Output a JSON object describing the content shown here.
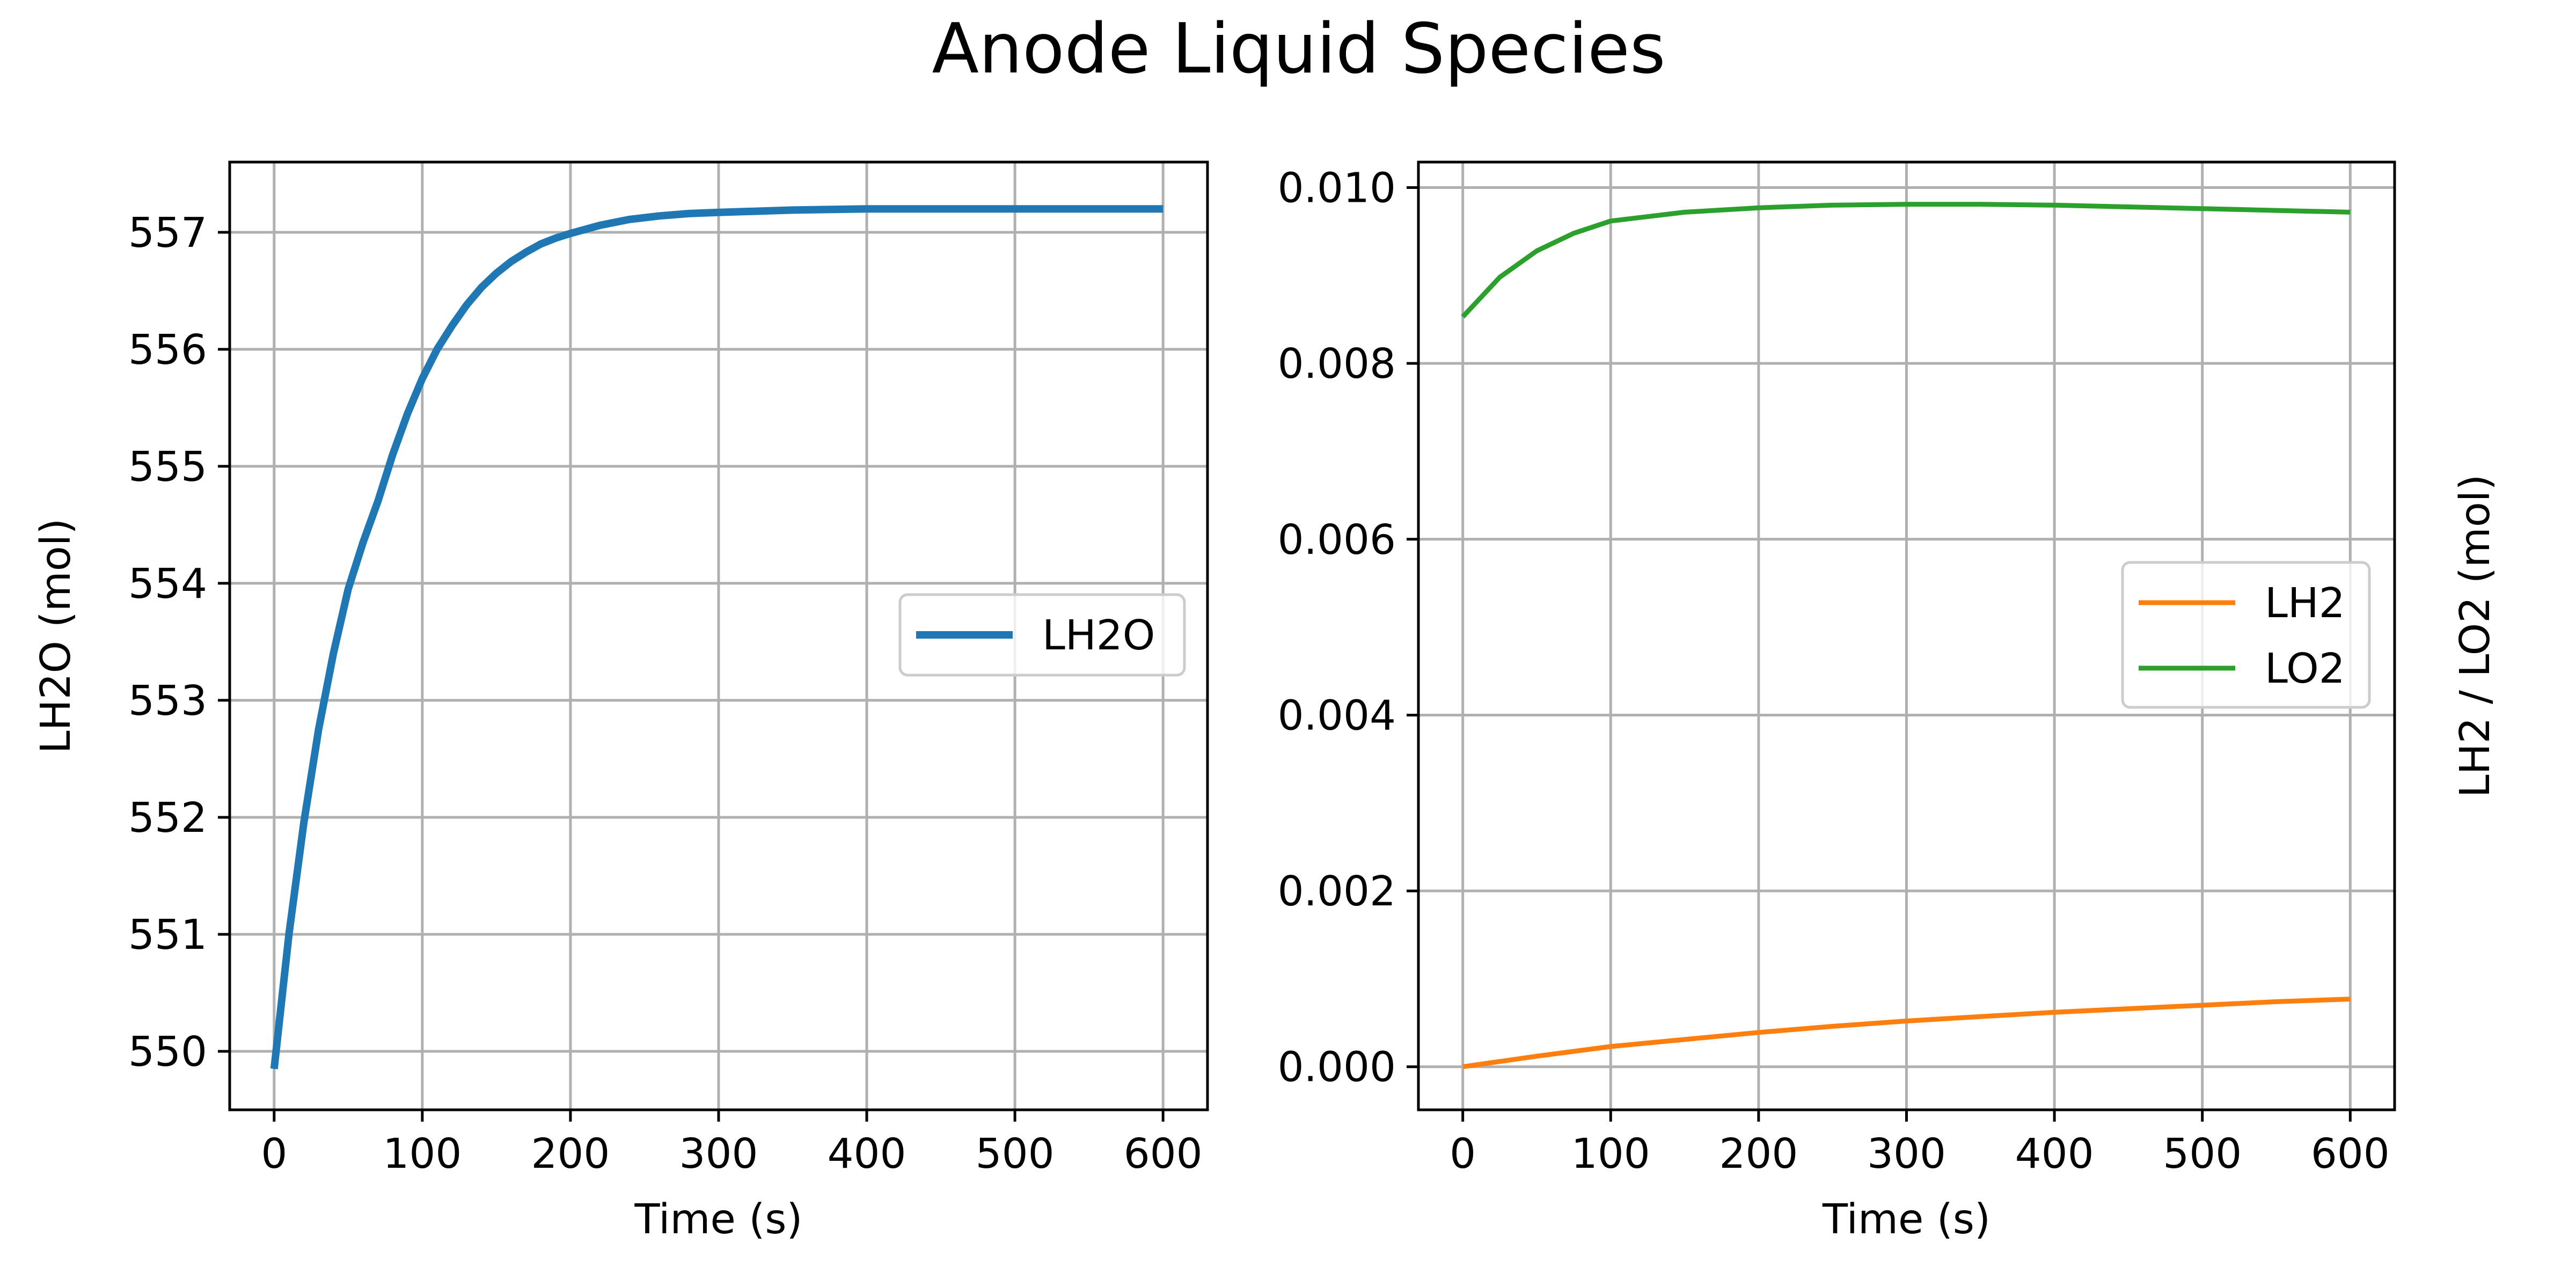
{
  "figure": {
    "title": "Anode Liquid Species"
  },
  "chart_data": [
    {
      "type": "line",
      "xlabel": "Time (s)",
      "ylabel": "LH2O (mol)",
      "xlim": [
        -30,
        630
      ],
      "ylim": [
        549.5,
        557.6
      ],
      "xticks": [
        0,
        100,
        200,
        300,
        400,
        500,
        600
      ],
      "xtick_labels": [
        "0",
        "100",
        "200",
        "300",
        "400",
        "500",
        "600"
      ],
      "yticks": [
        550,
        551,
        552,
        553,
        554,
        555,
        556,
        557
      ],
      "ytick_labels": [
        "550",
        "551",
        "552",
        "553",
        "554",
        "555",
        "556",
        "557"
      ],
      "grid": true,
      "legend_position": "center-right",
      "series": [
        {
          "name": "LH2O",
          "color": "#1f77b4",
          "x": [
            0,
            10,
            20,
            30,
            40,
            50,
            60,
            70,
            80,
            90,
            100,
            110,
            120,
            130,
            140,
            150,
            160,
            170,
            180,
            190,
            200,
            220,
            240,
            260,
            280,
            300,
            350,
            400,
            450,
            500,
            550,
            600
          ],
          "y": [
            549.85,
            551.0,
            551.95,
            552.75,
            553.4,
            553.95,
            554.35,
            554.7,
            555.1,
            555.45,
            555.75,
            556.0,
            556.2,
            556.38,
            556.53,
            556.65,
            556.75,
            556.83,
            556.9,
            556.95,
            556.99,
            557.06,
            557.11,
            557.14,
            557.16,
            557.17,
            557.19,
            557.2,
            557.2,
            557.2,
            557.2,
            557.2
          ]
        }
      ]
    },
    {
      "type": "line",
      "xlabel": "Time (s)",
      "ylabel": "LH2 / LO2 (mol)",
      "xlim": [
        -30,
        630
      ],
      "ylim": [
        -0.00049,
        0.01029
      ],
      "xticks": [
        0,
        100,
        200,
        300,
        400,
        500,
        600
      ],
      "xtick_labels": [
        "0",
        "100",
        "200",
        "300",
        "400",
        "500",
        "600"
      ],
      "yticks": [
        0.0,
        0.002,
        0.004,
        0.006,
        0.008,
        0.01
      ],
      "ytick_labels": [
        "0.000",
        "0.002",
        "0.004",
        "0.006",
        "0.008",
        "0.010"
      ],
      "grid": true,
      "legend_position": "center-right",
      "series": [
        {
          "name": "LH2",
          "color": "#ff7f0e",
          "x": [
            0,
            50,
            100,
            150,
            200,
            250,
            300,
            350,
            400,
            450,
            500,
            550,
            600
          ],
          "y": [
            0.0,
            0.00012,
            0.00023,
            0.00031,
            0.00039,
            0.00046,
            0.00052,
            0.00057,
            0.00062,
            0.00066,
            0.0007,
            0.00074,
            0.00077
          ]
        },
        {
          "name": "LO2",
          "color": "#2ca02c",
          "x": [
            0,
            25,
            50,
            75,
            100,
            150,
            200,
            250,
            300,
            350,
            400,
            450,
            500,
            550,
            600
          ],
          "y": [
            0.00853,
            0.00898,
            0.00928,
            0.00948,
            0.00962,
            0.00972,
            0.00977,
            0.0098,
            0.00981,
            0.00981,
            0.0098,
            0.00978,
            0.00976,
            0.00974,
            0.00972
          ]
        }
      ]
    }
  ]
}
